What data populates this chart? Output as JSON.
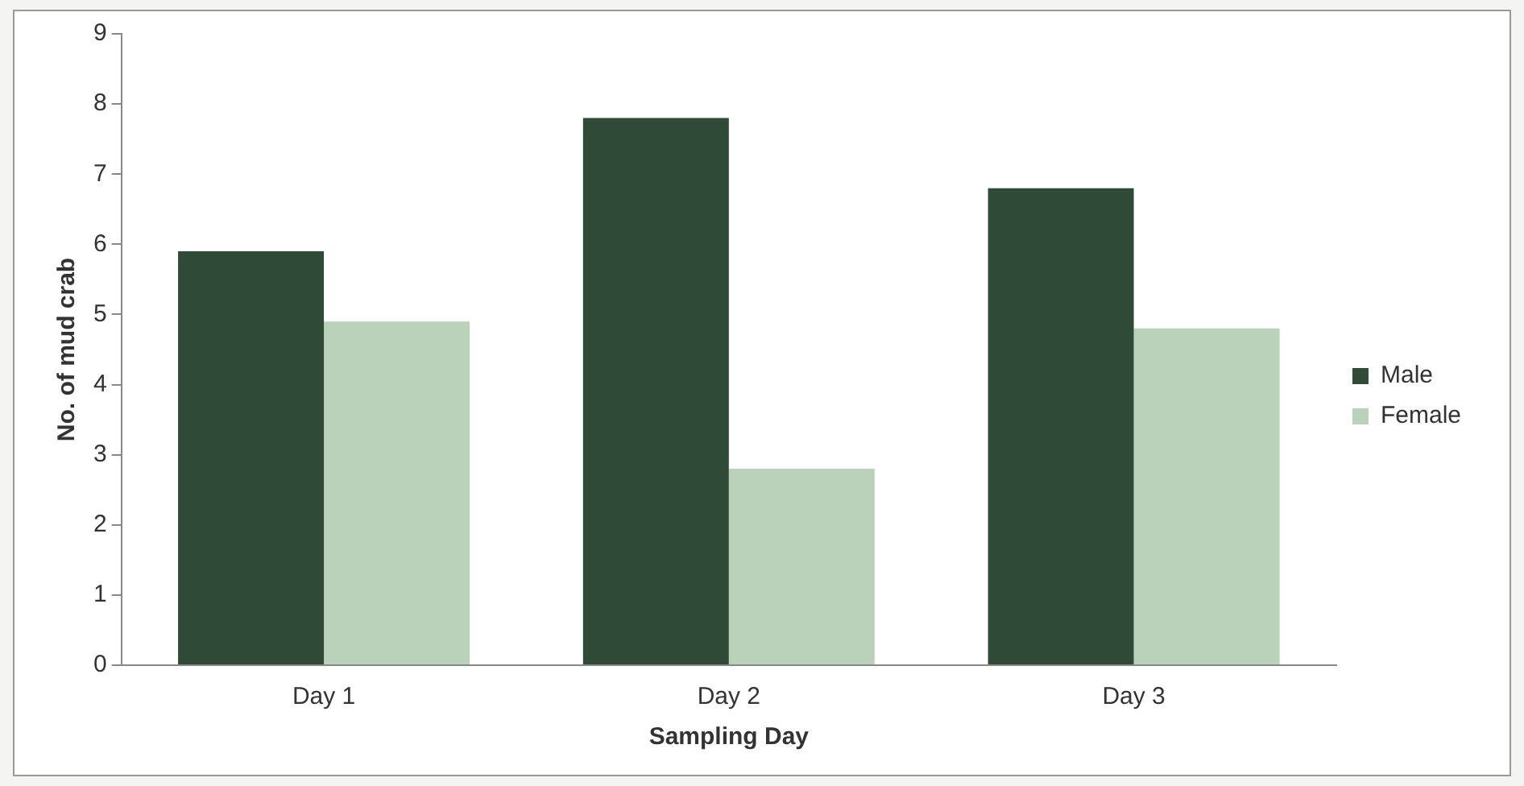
{
  "chart_data": {
    "type": "bar",
    "xlabel": "Sampling Day",
    "ylabel": "No. of mud crab",
    "categories": [
      "Day 1",
      "Day 2",
      "Day 3"
    ],
    "series": [
      {
        "name": "Male",
        "color": "#2f4a36",
        "values": [
          5.9,
          7.8,
          6.8
        ]
      },
      {
        "name": "Female",
        "color": "#b9d2b9",
        "values": [
          4.9,
          2.8,
          4.8
        ]
      }
    ],
    "ylim": [
      0,
      9
    ],
    "yticks": [
      0,
      1,
      2,
      3,
      4,
      5,
      6,
      7,
      8,
      9
    ],
    "grid": false,
    "legend": "right"
  }
}
